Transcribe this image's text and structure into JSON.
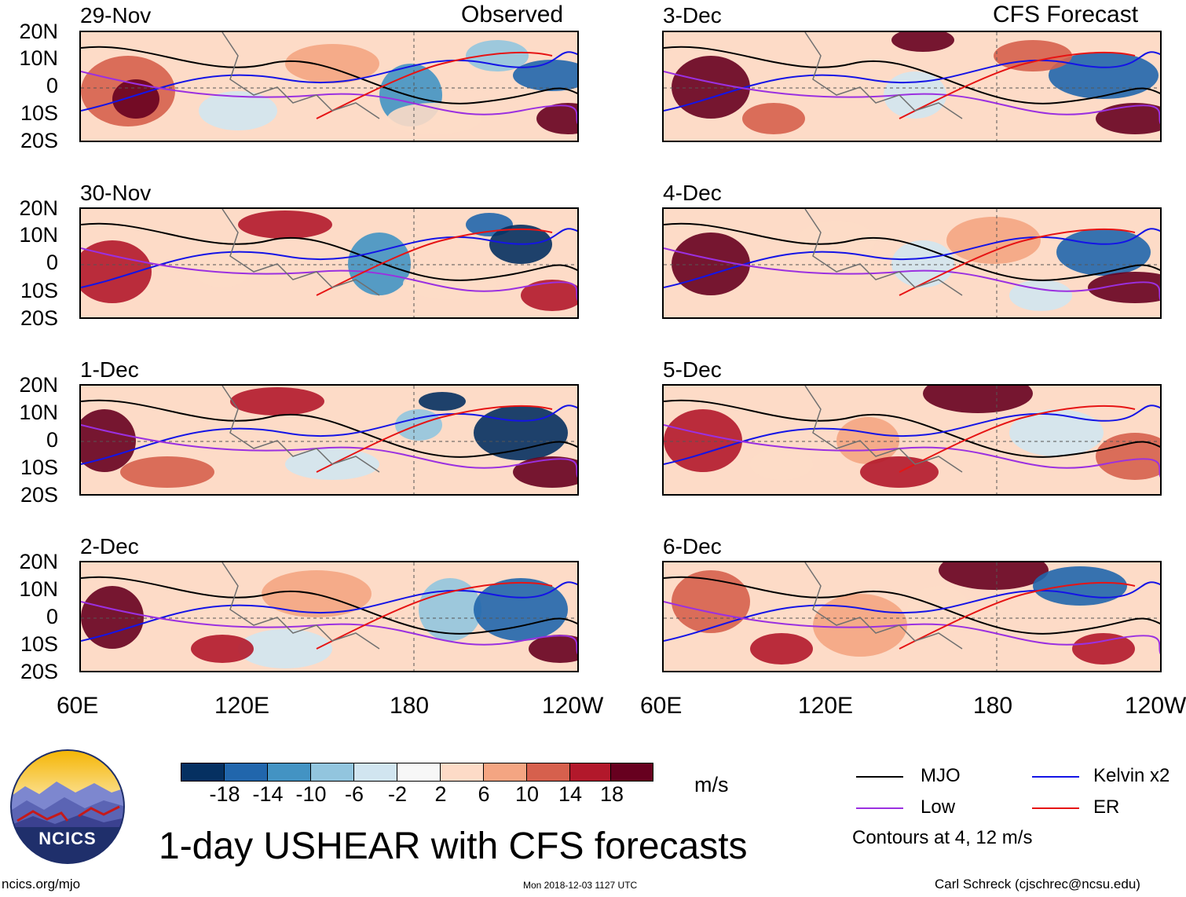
{
  "headers": {
    "observed": "Observed",
    "forecast": "CFS Forecast"
  },
  "observed_dates": [
    "29-Nov",
    "30-Nov",
    "1-Dec",
    "2-Dec"
  ],
  "forecast_dates": [
    "3-Dec",
    "4-Dec",
    "5-Dec",
    "6-Dec"
  ],
  "lat_labels": [
    "20N",
    "10N",
    "0",
    "10S",
    "20S"
  ],
  "lon_labels": [
    "60E",
    "120E",
    "180",
    "120W"
  ],
  "colorbar": {
    "ticks": [
      "-18",
      "-14",
      "-10",
      "-6",
      "-2",
      "2",
      "6",
      "10",
      "14",
      "18"
    ],
    "colors": [
      "#053061",
      "#2166ac",
      "#4393c3",
      "#92c5de",
      "#d1e5f0",
      "#f7f7f7",
      "#fddbc7",
      "#f4a582",
      "#d6604d",
      "#b2182b",
      "#67001f"
    ],
    "unit": "m/s"
  },
  "legend": {
    "items": [
      {
        "label": "MJO",
        "color": "#000000"
      },
      {
        "label": "Kelvin x2",
        "color": "#1414e6"
      },
      {
        "label": "Low",
        "color": "#9b30e0"
      },
      {
        "label": "ER",
        "color": "#e61414"
      }
    ],
    "note": "Contours at 4, 12 m/s"
  },
  "logo": {
    "text": "NCICS"
  },
  "title": "1-day USHEAR with CFS forecasts",
  "footer": {
    "left": "ncics.org/mjo",
    "center": "Mon 2018-12-03 1127 UTC",
    "right": "Carl Schreck (cjschrec@ncsu.edu)"
  }
}
